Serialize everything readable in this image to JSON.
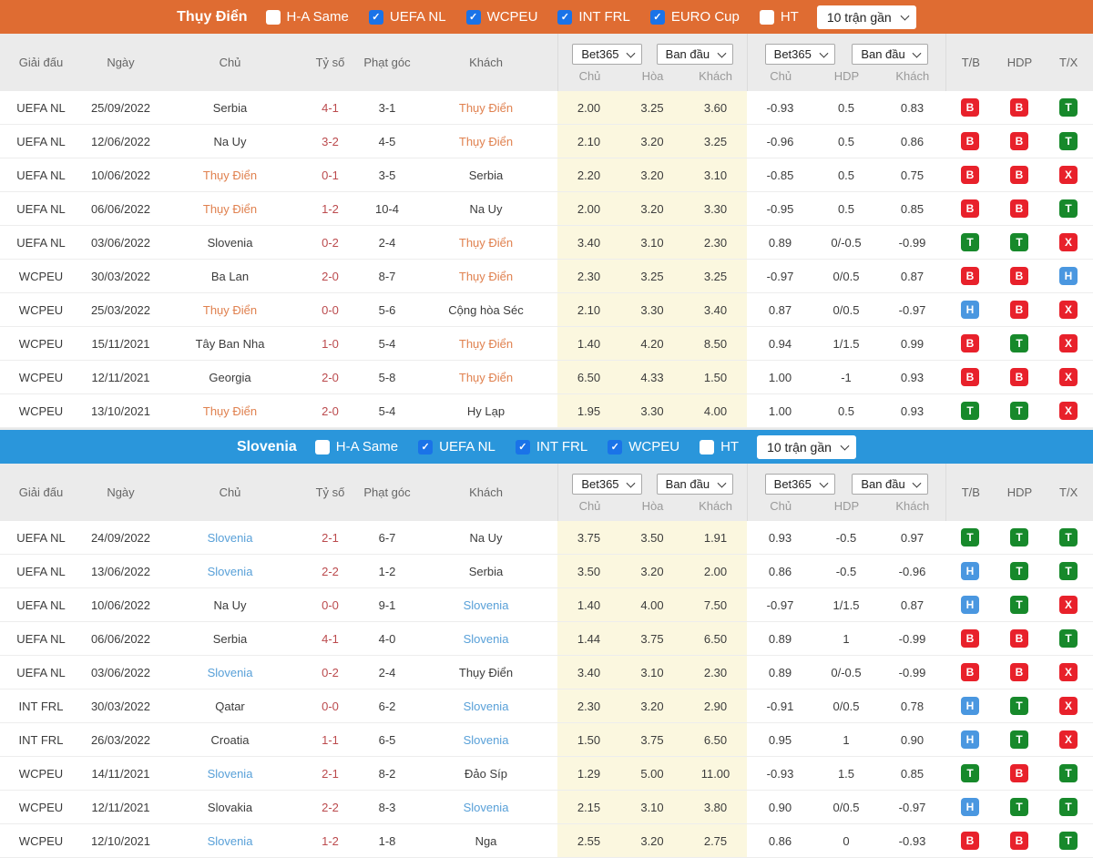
{
  "theme": {
    "odds_bg": "#fbf7df",
    "score_color": "#bb4a4d",
    "checkbox_on": "#1a73e8",
    "header_bg": "#ebebeb"
  },
  "badge_colors": {
    "B": "#e8212b",
    "T": "#17892b",
    "H": "#4a97e0",
    "X": "#e8212b"
  },
  "table_header": {
    "match_cols": [
      "Giải đấu",
      "Ngày",
      "Chủ",
      "Tỷ số",
      "Phạt góc",
      "Khách"
    ],
    "odds_group1": {
      "selects": [
        "Bet365",
        "Ban đầu"
      ],
      "sub": [
        "Chủ",
        "Hòa",
        "Khách"
      ]
    },
    "odds_group2": {
      "selects": [
        "Bet365",
        "Ban đầu"
      ],
      "sub": [
        "Chủ",
        "HDP",
        "Khách"
      ]
    },
    "result_cols": [
      "T/B",
      "HDP",
      "T/X"
    ]
  },
  "sections": [
    {
      "team": "Thụy Điển",
      "accent": "#df6c32",
      "highlight": "#e0814f",
      "range_select": "10 trận gần",
      "filters": [
        {
          "label": "H-A Same",
          "checked": false
        },
        {
          "label": "UEFA NL",
          "checked": true
        },
        {
          "label": "WCPEU",
          "checked": true
        },
        {
          "label": "INT FRL",
          "checked": true
        },
        {
          "label": "EURO Cup",
          "checked": true
        },
        {
          "label": "HT",
          "checked": false
        }
      ],
      "rows": [
        {
          "comp": "UEFA NL",
          "date": "25/09/2022",
          "home": "Serbia",
          "home_hl": false,
          "score": "4-1",
          "corners": "3-1",
          "away": "Thụy Điển",
          "away_hl": true,
          "odds": [
            "2.00",
            "3.25",
            "3.60"
          ],
          "hdp": [
            "-0.93",
            "0.5",
            "0.83"
          ],
          "results": [
            "B",
            "B",
            "T"
          ]
        },
        {
          "comp": "UEFA NL",
          "date": "12/06/2022",
          "home": "Na Uy",
          "home_hl": false,
          "score": "3-2",
          "corners": "4-5",
          "away": "Thụy Điển",
          "away_hl": true,
          "odds": [
            "2.10",
            "3.20",
            "3.25"
          ],
          "hdp": [
            "-0.96",
            "0.5",
            "0.86"
          ],
          "results": [
            "B",
            "B",
            "T"
          ]
        },
        {
          "comp": "UEFA NL",
          "date": "10/06/2022",
          "home": "Thụy Điển",
          "home_hl": true,
          "score": "0-1",
          "corners": "3-5",
          "away": "Serbia",
          "away_hl": false,
          "odds": [
            "2.20",
            "3.20",
            "3.10"
          ],
          "hdp": [
            "-0.85",
            "0.5",
            "0.75"
          ],
          "results": [
            "B",
            "B",
            "X"
          ]
        },
        {
          "comp": "UEFA NL",
          "date": "06/06/2022",
          "home": "Thụy Điển",
          "home_hl": true,
          "score": "1-2",
          "corners": "10-4",
          "away": "Na Uy",
          "away_hl": false,
          "odds": [
            "2.00",
            "3.20",
            "3.30"
          ],
          "hdp": [
            "-0.95",
            "0.5",
            "0.85"
          ],
          "results": [
            "B",
            "B",
            "T"
          ]
        },
        {
          "comp": "UEFA NL",
          "date": "03/06/2022",
          "home": "Slovenia",
          "home_hl": false,
          "score": "0-2",
          "corners": "2-4",
          "away": "Thụy Điển",
          "away_hl": true,
          "odds": [
            "3.40",
            "3.10",
            "2.30"
          ],
          "hdp": [
            "0.89",
            "0/-0.5",
            "-0.99"
          ],
          "results": [
            "T",
            "T",
            "X"
          ]
        },
        {
          "comp": "WCPEU",
          "date": "30/03/2022",
          "home": "Ba Lan",
          "home_hl": false,
          "score": "2-0",
          "corners": "8-7",
          "away": "Thụy Điển",
          "away_hl": true,
          "odds": [
            "2.30",
            "3.25",
            "3.25"
          ],
          "hdp": [
            "-0.97",
            "0/0.5",
            "0.87"
          ],
          "results": [
            "B",
            "B",
            "H"
          ]
        },
        {
          "comp": "WCPEU",
          "date": "25/03/2022",
          "home": "Thụy Điển",
          "home_hl": true,
          "score": "0-0",
          "corners": "5-6",
          "away": "Cộng hòa Séc",
          "away_hl": false,
          "odds": [
            "2.10",
            "3.30",
            "3.40"
          ],
          "hdp": [
            "0.87",
            "0/0.5",
            "-0.97"
          ],
          "results": [
            "H",
            "B",
            "X"
          ]
        },
        {
          "comp": "WCPEU",
          "date": "15/11/2021",
          "home": "Tây Ban Nha",
          "home_hl": false,
          "score": "1-0",
          "corners": "5-4",
          "away": "Thụy Điển",
          "away_hl": true,
          "odds": [
            "1.40",
            "4.20",
            "8.50"
          ],
          "hdp": [
            "0.94",
            "1/1.5",
            "0.99"
          ],
          "results": [
            "B",
            "T",
            "X"
          ]
        },
        {
          "comp": "WCPEU",
          "date": "12/11/2021",
          "home": "Georgia",
          "home_hl": false,
          "score": "2-0",
          "corners": "5-8",
          "away": "Thụy Điển",
          "away_hl": true,
          "odds": [
            "6.50",
            "4.33",
            "1.50"
          ],
          "hdp": [
            "1.00",
            "-1",
            "0.93"
          ],
          "results": [
            "B",
            "B",
            "X"
          ]
        },
        {
          "comp": "WCPEU",
          "date": "13/10/2021",
          "home": "Thụy Điển",
          "home_hl": true,
          "score": "2-0",
          "corners": "5-4",
          "away": "Hy Lạp",
          "away_hl": false,
          "odds": [
            "1.95",
            "3.30",
            "4.00"
          ],
          "hdp": [
            "1.00",
            "0.5",
            "0.93"
          ],
          "results": [
            "T",
            "T",
            "X"
          ]
        }
      ]
    },
    {
      "team": "Slovenia",
      "accent": "#2a96db",
      "highlight": "#58a0d8",
      "range_select": "10 trận gần",
      "filters": [
        {
          "label": "H-A Same",
          "checked": false
        },
        {
          "label": "UEFA NL",
          "checked": true
        },
        {
          "label": "INT FRL",
          "checked": true
        },
        {
          "label": "WCPEU",
          "checked": true
        },
        {
          "label": "HT",
          "checked": false
        }
      ],
      "rows": [
        {
          "comp": "UEFA NL",
          "date": "24/09/2022",
          "home": "Slovenia",
          "home_hl": true,
          "score": "2-1",
          "corners": "6-7",
          "away": "Na Uy",
          "away_hl": false,
          "odds": [
            "3.75",
            "3.50",
            "1.91"
          ],
          "hdp": [
            "0.93",
            "-0.5",
            "0.97"
          ],
          "results": [
            "T",
            "T",
            "T"
          ]
        },
        {
          "comp": "UEFA NL",
          "date": "13/06/2022",
          "home": "Slovenia",
          "home_hl": true,
          "score": "2-2",
          "corners": "1-2",
          "away": "Serbia",
          "away_hl": false,
          "odds": [
            "3.50",
            "3.20",
            "2.00"
          ],
          "hdp": [
            "0.86",
            "-0.5",
            "-0.96"
          ],
          "results": [
            "H",
            "T",
            "T"
          ]
        },
        {
          "comp": "UEFA NL",
          "date": "10/06/2022",
          "home": "Na Uy",
          "home_hl": false,
          "score": "0-0",
          "corners": "9-1",
          "away": "Slovenia",
          "away_hl": true,
          "odds": [
            "1.40",
            "4.00",
            "7.50"
          ],
          "hdp": [
            "-0.97",
            "1/1.5",
            "0.87"
          ],
          "results": [
            "H",
            "T",
            "X"
          ]
        },
        {
          "comp": "UEFA NL",
          "date": "06/06/2022",
          "home": "Serbia",
          "home_hl": false,
          "score": "4-1",
          "corners": "4-0",
          "away": "Slovenia",
          "away_hl": true,
          "odds": [
            "1.44",
            "3.75",
            "6.50"
          ],
          "hdp": [
            "0.89",
            "1",
            "-0.99"
          ],
          "results": [
            "B",
            "B",
            "T"
          ]
        },
        {
          "comp": "UEFA NL",
          "date": "03/06/2022",
          "home": "Slovenia",
          "home_hl": true,
          "score": "0-2",
          "corners": "2-4",
          "away": "Thụy Điển",
          "away_hl": false,
          "odds": [
            "3.40",
            "3.10",
            "2.30"
          ],
          "hdp": [
            "0.89",
            "0/-0.5",
            "-0.99"
          ],
          "results": [
            "B",
            "B",
            "X"
          ]
        },
        {
          "comp": "INT FRL",
          "date": "30/03/2022",
          "home": "Qatar",
          "home_hl": false,
          "score": "0-0",
          "corners": "6-2",
          "away": "Slovenia",
          "away_hl": true,
          "odds": [
            "2.30",
            "3.20",
            "2.90"
          ],
          "hdp": [
            "-0.91",
            "0/0.5",
            "0.78"
          ],
          "results": [
            "H",
            "T",
            "X"
          ]
        },
        {
          "comp": "INT FRL",
          "date": "26/03/2022",
          "home": "Croatia",
          "home_hl": false,
          "score": "1-1",
          "corners": "6-5",
          "away": "Slovenia",
          "away_hl": true,
          "odds": [
            "1.50",
            "3.75",
            "6.50"
          ],
          "hdp": [
            "0.95",
            "1",
            "0.90"
          ],
          "results": [
            "H",
            "T",
            "X"
          ]
        },
        {
          "comp": "WCPEU",
          "date": "14/11/2021",
          "home": "Slovenia",
          "home_hl": true,
          "score": "2-1",
          "corners": "8-2",
          "away": "Đảo Síp",
          "away_hl": false,
          "odds": [
            "1.29",
            "5.00",
            "11.00"
          ],
          "hdp": [
            "-0.93",
            "1.5",
            "0.85"
          ],
          "results": [
            "T",
            "B",
            "T"
          ]
        },
        {
          "comp": "WCPEU",
          "date": "12/11/2021",
          "home": "Slovakia",
          "home_hl": false,
          "score": "2-2",
          "corners": "8-3",
          "away": "Slovenia",
          "away_hl": true,
          "odds": [
            "2.15",
            "3.10",
            "3.80"
          ],
          "hdp": [
            "0.90",
            "0/0.5",
            "-0.97"
          ],
          "results": [
            "H",
            "T",
            "T"
          ]
        },
        {
          "comp": "WCPEU",
          "date": "12/10/2021",
          "home": "Slovenia",
          "home_hl": true,
          "score": "1-2",
          "corners": "1-8",
          "away": "Nga",
          "away_hl": false,
          "odds": [
            "2.55",
            "3.20",
            "2.75"
          ],
          "hdp": [
            "0.86",
            "0",
            "-0.93"
          ],
          "results": [
            "B",
            "B",
            "T"
          ]
        }
      ]
    }
  ]
}
